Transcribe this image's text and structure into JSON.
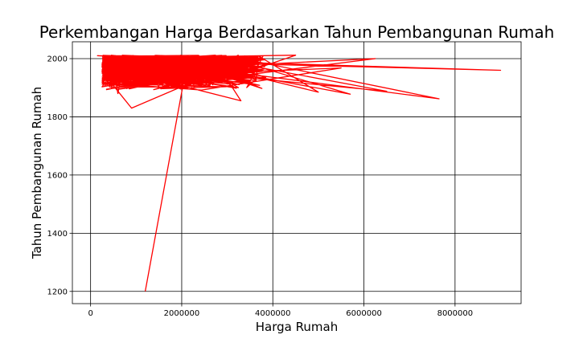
{
  "chart_data": {
    "type": "line",
    "title": "Perkembangan Harga Berdasarkan Tahun Pembangunan Rumah",
    "xlabel": "Harga Rumah",
    "ylabel": "Tahun Pembangunan Rumah",
    "xlim": [
      -400000,
      9450000
    ],
    "ylim": [
      1158,
      2058
    ],
    "xticks": [
      0,
      2000000,
      4000000,
      6000000,
      8000000
    ],
    "xtick_labels": [
      "0",
      "2000000",
      "4000000",
      "6000000",
      "8000000"
    ],
    "yticks": [
      1200,
      1400,
      1600,
      1800,
      2000
    ],
    "ytick_labels": [
      "1200",
      "1400",
      "1600",
      "1800",
      "2000"
    ],
    "grid": true,
    "series": [
      {
        "color": "#ff0000",
        "notable_points": [
          {
            "x": 1200000,
            "y": 1200
          },
          {
            "x": 800000,
            "y": 1995
          },
          {
            "x": 9000000,
            "y": 1960
          },
          {
            "x": 7650000,
            "y": 1862
          },
          {
            "x": 6500000,
            "y": 1888
          },
          {
            "x": 6250000,
            "y": 2000
          },
          {
            "x": 5700000,
            "y": 1878
          },
          {
            "x": 5500000,
            "y": 1968
          },
          {
            "x": 5000000,
            "y": 1885
          },
          {
            "x": 4500000,
            "y": 2012
          },
          {
            "x": 3300000,
            "y": 1855
          },
          {
            "x": 900000,
            "y": 1830
          },
          {
            "x": 150000,
            "y": 2010
          },
          {
            "x": 600000,
            "y": 1880
          }
        ]
      }
    ]
  }
}
